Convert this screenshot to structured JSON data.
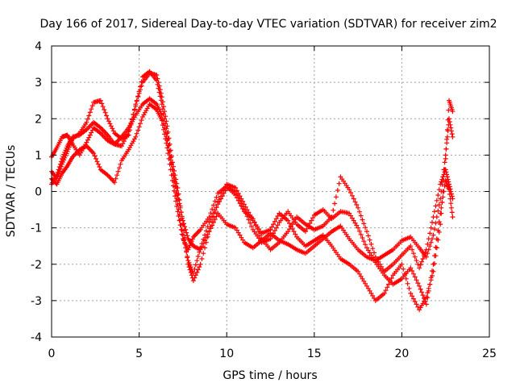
{
  "chart_data": {
    "type": "scatter",
    "title": "Day 166 of 2017, Sidereal Day-to-day VTEC variation (SDTVAR) for receiver zim2",
    "xlabel": "GPS time / hours",
    "ylabel": "SDTVAR / TECUs",
    "xlim": [
      0,
      25
    ],
    "ylim": [
      -4,
      4
    ],
    "xticks": [
      0,
      5,
      10,
      15,
      20,
      25
    ],
    "yticks": [
      -4,
      -3,
      -2,
      -1,
      0,
      1,
      2,
      3,
      4
    ],
    "xtick_labels": [
      "0",
      "5",
      "10",
      "15",
      "20",
      "25"
    ],
    "ytick_labels": [
      "-4",
      "-3",
      "-2",
      "-1",
      "0",
      "1",
      "2",
      "3",
      "4"
    ],
    "grid": true,
    "marker": "+",
    "color": "#ff0000",
    "series": [
      {
        "name": "trace-1",
        "points": [
          [
            0.0,
            0.95
          ],
          [
            0.3,
            1.2
          ],
          [
            0.6,
            1.5
          ],
          [
            0.9,
            1.55
          ],
          [
            1.2,
            1.3
          ],
          [
            1.6,
            1.0
          ],
          [
            2.0,
            1.35
          ],
          [
            2.4,
            1.75
          ],
          [
            2.8,
            1.6
          ],
          [
            3.2,
            1.4
          ],
          [
            3.6,
            1.3
          ],
          [
            4.0,
            1.5
          ],
          [
            4.4,
            1.75
          ],
          [
            4.8,
            2.1
          ],
          [
            5.2,
            2.4
          ],
          [
            5.6,
            2.55
          ],
          [
            6.0,
            2.4
          ],
          [
            6.3,
            2.1
          ],
          [
            6.6,
            1.4
          ],
          [
            6.9,
            0.6
          ],
          [
            7.2,
            -0.1
          ],
          [
            7.5,
            -0.8
          ],
          [
            7.8,
            -1.3
          ],
          [
            8.1,
            -1.5
          ],
          [
            8.5,
            -1.6
          ],
          [
            9.0,
            -1.1
          ],
          [
            9.5,
            -0.6
          ],
          [
            10.0,
            -0.9
          ],
          [
            10.5,
            -1.0
          ],
          [
            11.0,
            -1.4
          ],
          [
            11.5,
            -1.55
          ],
          [
            12.0,
            -1.35
          ],
          [
            12.5,
            -1.15
          ],
          [
            13.0,
            -1.35
          ],
          [
            13.5,
            -1.45
          ],
          [
            14.0,
            -1.6
          ],
          [
            14.5,
            -1.7
          ],
          [
            15.0,
            -1.5
          ],
          [
            15.5,
            -1.3
          ],
          [
            16.0,
            -1.1
          ],
          [
            16.5,
            -0.95
          ],
          [
            17.0,
            -1.3
          ],
          [
            17.5,
            -1.6
          ],
          [
            18.0,
            -1.8
          ],
          [
            18.5,
            -1.9
          ],
          [
            19.0,
            -1.75
          ],
          [
            19.5,
            -1.6
          ],
          [
            20.0,
            -1.35
          ],
          [
            20.5,
            -1.25
          ],
          [
            21.0,
            -1.55
          ],
          [
            21.4,
            -1.8
          ],
          [
            21.8,
            -1.2
          ],
          [
            22.2,
            -0.2
          ],
          [
            22.5,
            1.0
          ],
          [
            22.7,
            2.0
          ],
          [
            22.9,
            1.5
          ]
        ]
      },
      {
        "name": "trace-2",
        "points": [
          [
            0.0,
            0.55
          ],
          [
            0.3,
            0.35
          ],
          [
            0.6,
            0.75
          ],
          [
            0.9,
            1.1
          ],
          [
            1.2,
            1.45
          ],
          [
            1.6,
            1.6
          ],
          [
            2.0,
            1.9
          ],
          [
            2.4,
            2.45
          ],
          [
            2.8,
            2.5
          ],
          [
            3.2,
            2.0
          ],
          [
            3.6,
            1.6
          ],
          [
            4.0,
            1.45
          ],
          [
            4.4,
            1.55
          ],
          [
            4.8,
            2.4
          ],
          [
            5.2,
            3.0
          ],
          [
            5.6,
            3.25
          ],
          [
            6.0,
            3.2
          ],
          [
            6.3,
            2.6
          ],
          [
            6.6,
            1.8
          ],
          [
            6.9,
            0.8
          ],
          [
            7.2,
            0.1
          ],
          [
            7.5,
            -0.9
          ],
          [
            7.8,
            -2.0
          ],
          [
            8.1,
            -2.45
          ],
          [
            8.5,
            -2.0
          ],
          [
            9.0,
            -1.1
          ],
          [
            9.5,
            -0.3
          ],
          [
            10.0,
            0.2
          ],
          [
            10.5,
            0.1
          ],
          [
            11.0,
            -0.35
          ],
          [
            11.5,
            -0.8
          ],
          [
            12.0,
            -1.15
          ],
          [
            12.5,
            -1.05
          ],
          [
            13.0,
            -0.6
          ],
          [
            13.5,
            -0.8
          ],
          [
            14.0,
            -1.25
          ],
          [
            14.5,
            -1.5
          ],
          [
            15.0,
            -1.35
          ],
          [
            15.5,
            -1.2
          ],
          [
            16.0,
            -1.5
          ],
          [
            16.5,
            -1.85
          ],
          [
            17.0,
            -2.0
          ],
          [
            17.5,
            -2.2
          ],
          [
            18.0,
            -2.6
          ],
          [
            18.5,
            -3.0
          ],
          [
            19.0,
            -2.8
          ],
          [
            19.5,
            -2.3
          ],
          [
            20.0,
            -2.0
          ],
          [
            20.5,
            -2.8
          ],
          [
            21.0,
            -3.25
          ],
          [
            21.4,
            -2.9
          ],
          [
            21.8,
            -2.2
          ],
          [
            22.2,
            -0.9
          ],
          [
            22.5,
            0.9
          ],
          [
            22.7,
            2.5
          ],
          [
            22.9,
            2.2
          ]
        ]
      },
      {
        "name": "trace-3",
        "points": [
          [
            0.0,
            0.2
          ],
          [
            0.3,
            0.45
          ],
          [
            0.6,
            0.9
          ],
          [
            0.9,
            1.25
          ],
          [
            1.2,
            1.5
          ],
          [
            1.6,
            1.55
          ],
          [
            2.0,
            1.7
          ],
          [
            2.4,
            1.9
          ],
          [
            2.8,
            1.75
          ],
          [
            3.2,
            1.55
          ],
          [
            3.6,
            1.3
          ],
          [
            4.0,
            1.25
          ],
          [
            4.4,
            1.65
          ],
          [
            4.8,
            2.35
          ],
          [
            5.2,
            3.15
          ],
          [
            5.6,
            3.3
          ],
          [
            6.0,
            3.05
          ],
          [
            6.3,
            2.4
          ],
          [
            6.6,
            1.6
          ],
          [
            6.9,
            0.6
          ],
          [
            7.2,
            -0.35
          ],
          [
            7.5,
            -1.2
          ],
          [
            7.8,
            -1.9
          ],
          [
            8.1,
            -2.25
          ],
          [
            8.5,
            -1.55
          ],
          [
            9.0,
            -0.85
          ],
          [
            9.5,
            -0.35
          ],
          [
            10.0,
            0.1
          ],
          [
            10.5,
            0.0
          ],
          [
            11.0,
            -0.5
          ],
          [
            11.5,
            -1.05
          ],
          [
            12.0,
            -1.4
          ],
          [
            12.5,
            -1.3
          ],
          [
            13.0,
            -0.85
          ],
          [
            13.5,
            -0.55
          ],
          [
            14.0,
            -0.9
          ],
          [
            14.5,
            -1.1
          ],
          [
            15.0,
            -0.65
          ],
          [
            15.5,
            -0.5
          ],
          [
            16.0,
            -0.75
          ],
          [
            16.5,
            -0.55
          ],
          [
            17.0,
            -0.6
          ],
          [
            17.5,
            -1.0
          ],
          [
            18.0,
            -1.55
          ],
          [
            18.5,
            -1.95
          ],
          [
            19.0,
            -2.3
          ],
          [
            19.5,
            -2.55
          ],
          [
            20.0,
            -2.4
          ],
          [
            20.5,
            -2.1
          ],
          [
            21.0,
            -2.6
          ],
          [
            21.4,
            -3.1
          ],
          [
            21.8,
            -2.0
          ],
          [
            22.2,
            -0.6
          ],
          [
            22.5,
            0.3
          ],
          [
            22.7,
            0.05
          ],
          [
            22.9,
            -0.7
          ]
        ]
      },
      {
        "name": "trace-4",
        "points": [
          [
            0.0,
            0.35
          ],
          [
            0.3,
            0.2
          ],
          [
            0.6,
            0.5
          ],
          [
            0.9,
            0.7
          ],
          [
            1.2,
            0.95
          ],
          [
            1.6,
            1.15
          ],
          [
            2.0,
            1.25
          ],
          [
            2.4,
            1.05
          ],
          [
            2.8,
            0.6
          ],
          [
            3.2,
            0.45
          ],
          [
            3.6,
            0.25
          ],
          [
            4.0,
            0.85
          ],
          [
            4.4,
            1.15
          ],
          [
            4.8,
            1.5
          ],
          [
            5.2,
            2.05
          ],
          [
            5.6,
            2.4
          ],
          [
            6.0,
            2.25
          ],
          [
            6.3,
            1.95
          ],
          [
            6.6,
            1.2
          ],
          [
            6.9,
            0.3
          ],
          [
            7.2,
            -0.55
          ],
          [
            7.5,
            -1.3
          ],
          [
            7.8,
            -1.6
          ],
          [
            8.1,
            -1.25
          ],
          [
            8.5,
            -1.05
          ],
          [
            9.0,
            -0.7
          ],
          [
            9.5,
            -0.05
          ],
          [
            10.0,
            0.15
          ],
          [
            10.5,
            -0.1
          ],
          [
            11.0,
            -0.55
          ],
          [
            11.5,
            -0.75
          ],
          [
            12.0,
            -1.3
          ],
          [
            12.5,
            -1.6
          ],
          [
            13.0,
            -1.4
          ],
          [
            13.5,
            -1.1
          ],
          [
            14.0,
            -0.7
          ],
          [
            14.5,
            -0.9
          ],
          [
            15.0,
            -1.05
          ],
          [
            15.5,
            -0.95
          ],
          [
            16.0,
            -0.7
          ],
          [
            16.5,
            0.4
          ],
          [
            17.0,
            0.05
          ],
          [
            17.5,
            -0.45
          ],
          [
            18.0,
            -1.1
          ],
          [
            18.5,
            -1.8
          ],
          [
            19.0,
            -2.2
          ],
          [
            19.5,
            -2.0
          ],
          [
            20.0,
            -1.75
          ],
          [
            20.5,
            -1.5
          ],
          [
            21.0,
            -2.1
          ],
          [
            21.4,
            -1.6
          ],
          [
            21.8,
            -0.7
          ],
          [
            22.2,
            0.2
          ],
          [
            22.5,
            0.6
          ],
          [
            22.7,
            0.2
          ],
          [
            22.9,
            -0.2
          ]
        ]
      }
    ]
  }
}
